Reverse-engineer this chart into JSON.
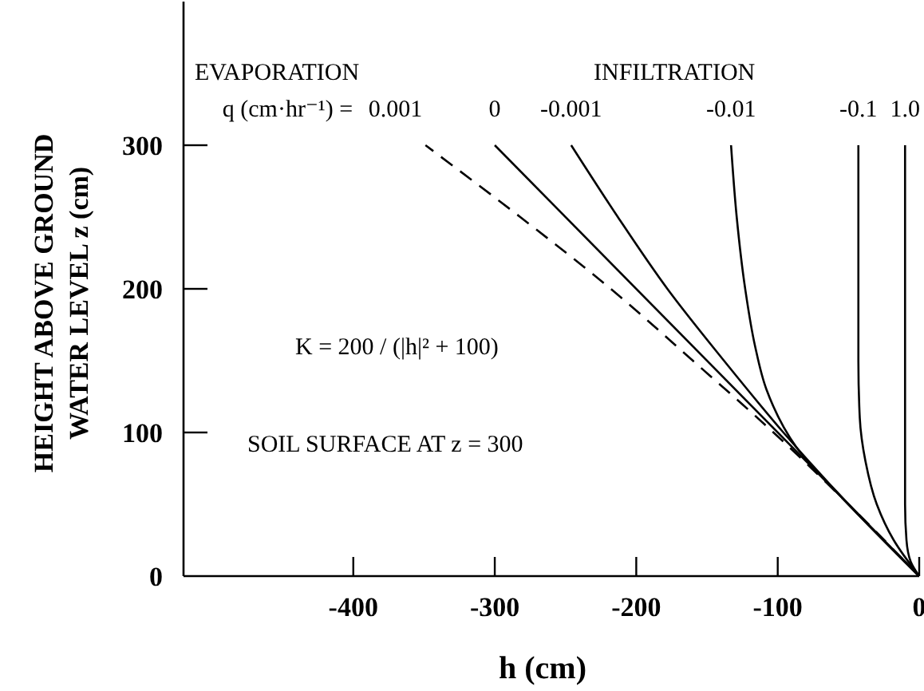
{
  "chart_data": {
    "type": "line",
    "xlabel": "h (cm)",
    "ylabel": "HEIGHT ABOVE GROUND WATER LEVEL z (cm)",
    "xlim": [
      -520,
      0
    ],
    "ylim": [
      0,
      400
    ],
    "xticks": [
      -400,
      -300,
      -200,
      -100,
      {
        "value": 0,
        "label": "0"
      }
    ],
    "yticks": [
      0,
      100,
      200,
      300
    ],
    "grid": false,
    "marker": "none",
    "annotations": [
      "EVAPORATION",
      "INFILTRATION",
      "q (cm·hr⁻¹) =",
      "K = 200 / (|h|² + 100)",
      "SOIL SURFACE AT z = 300"
    ],
    "series": [
      {
        "name": "0.001",
        "color": "#000000",
        "line_style": "dashed",
        "x": [
          0,
          -50,
          -103,
          -160,
          -218,
          -282,
          -349
        ],
        "values": [
          0,
          50,
          100,
          150,
          200,
          250,
          300
        ]
      },
      {
        "name": "0",
        "color": "#000000",
        "line_style": "solid",
        "x": [
          0,
          -300
        ],
        "values": [
          0,
          300
        ]
      },
      {
        "name": "-0.001",
        "color": "#000000",
        "line_style": "solid",
        "x": [
          0,
          -50,
          -96,
          -138,
          -178,
          -213,
          -246
        ],
        "values": [
          0,
          50,
          100,
          150,
          200,
          250,
          300
        ]
      },
      {
        "name": "-0.01",
        "color": "#000000",
        "line_style": "solid",
        "x": [
          0,
          -50,
          -87,
          -108,
          -116,
          -123,
          -129,
          -133
        ],
        "values": [
          0,
          50,
          90,
          130,
          160,
          200,
          250,
          300
        ]
      },
      {
        "name": "-0.1",
        "color": "#000000",
        "line_style": "solid",
        "x": [
          0,
          -18,
          -30,
          -38,
          -42,
          -43,
          -43
        ],
        "values": [
          0,
          25,
          50,
          80,
          110,
          150,
          300
        ]
      },
      {
        "name": "1.0",
        "color": "#000000",
        "line_style": "solid",
        "x": [
          0,
          -6,
          -9,
          -10,
          -10
        ],
        "values": [
          0,
          10,
          25,
          50,
          300
        ]
      }
    ]
  }
}
